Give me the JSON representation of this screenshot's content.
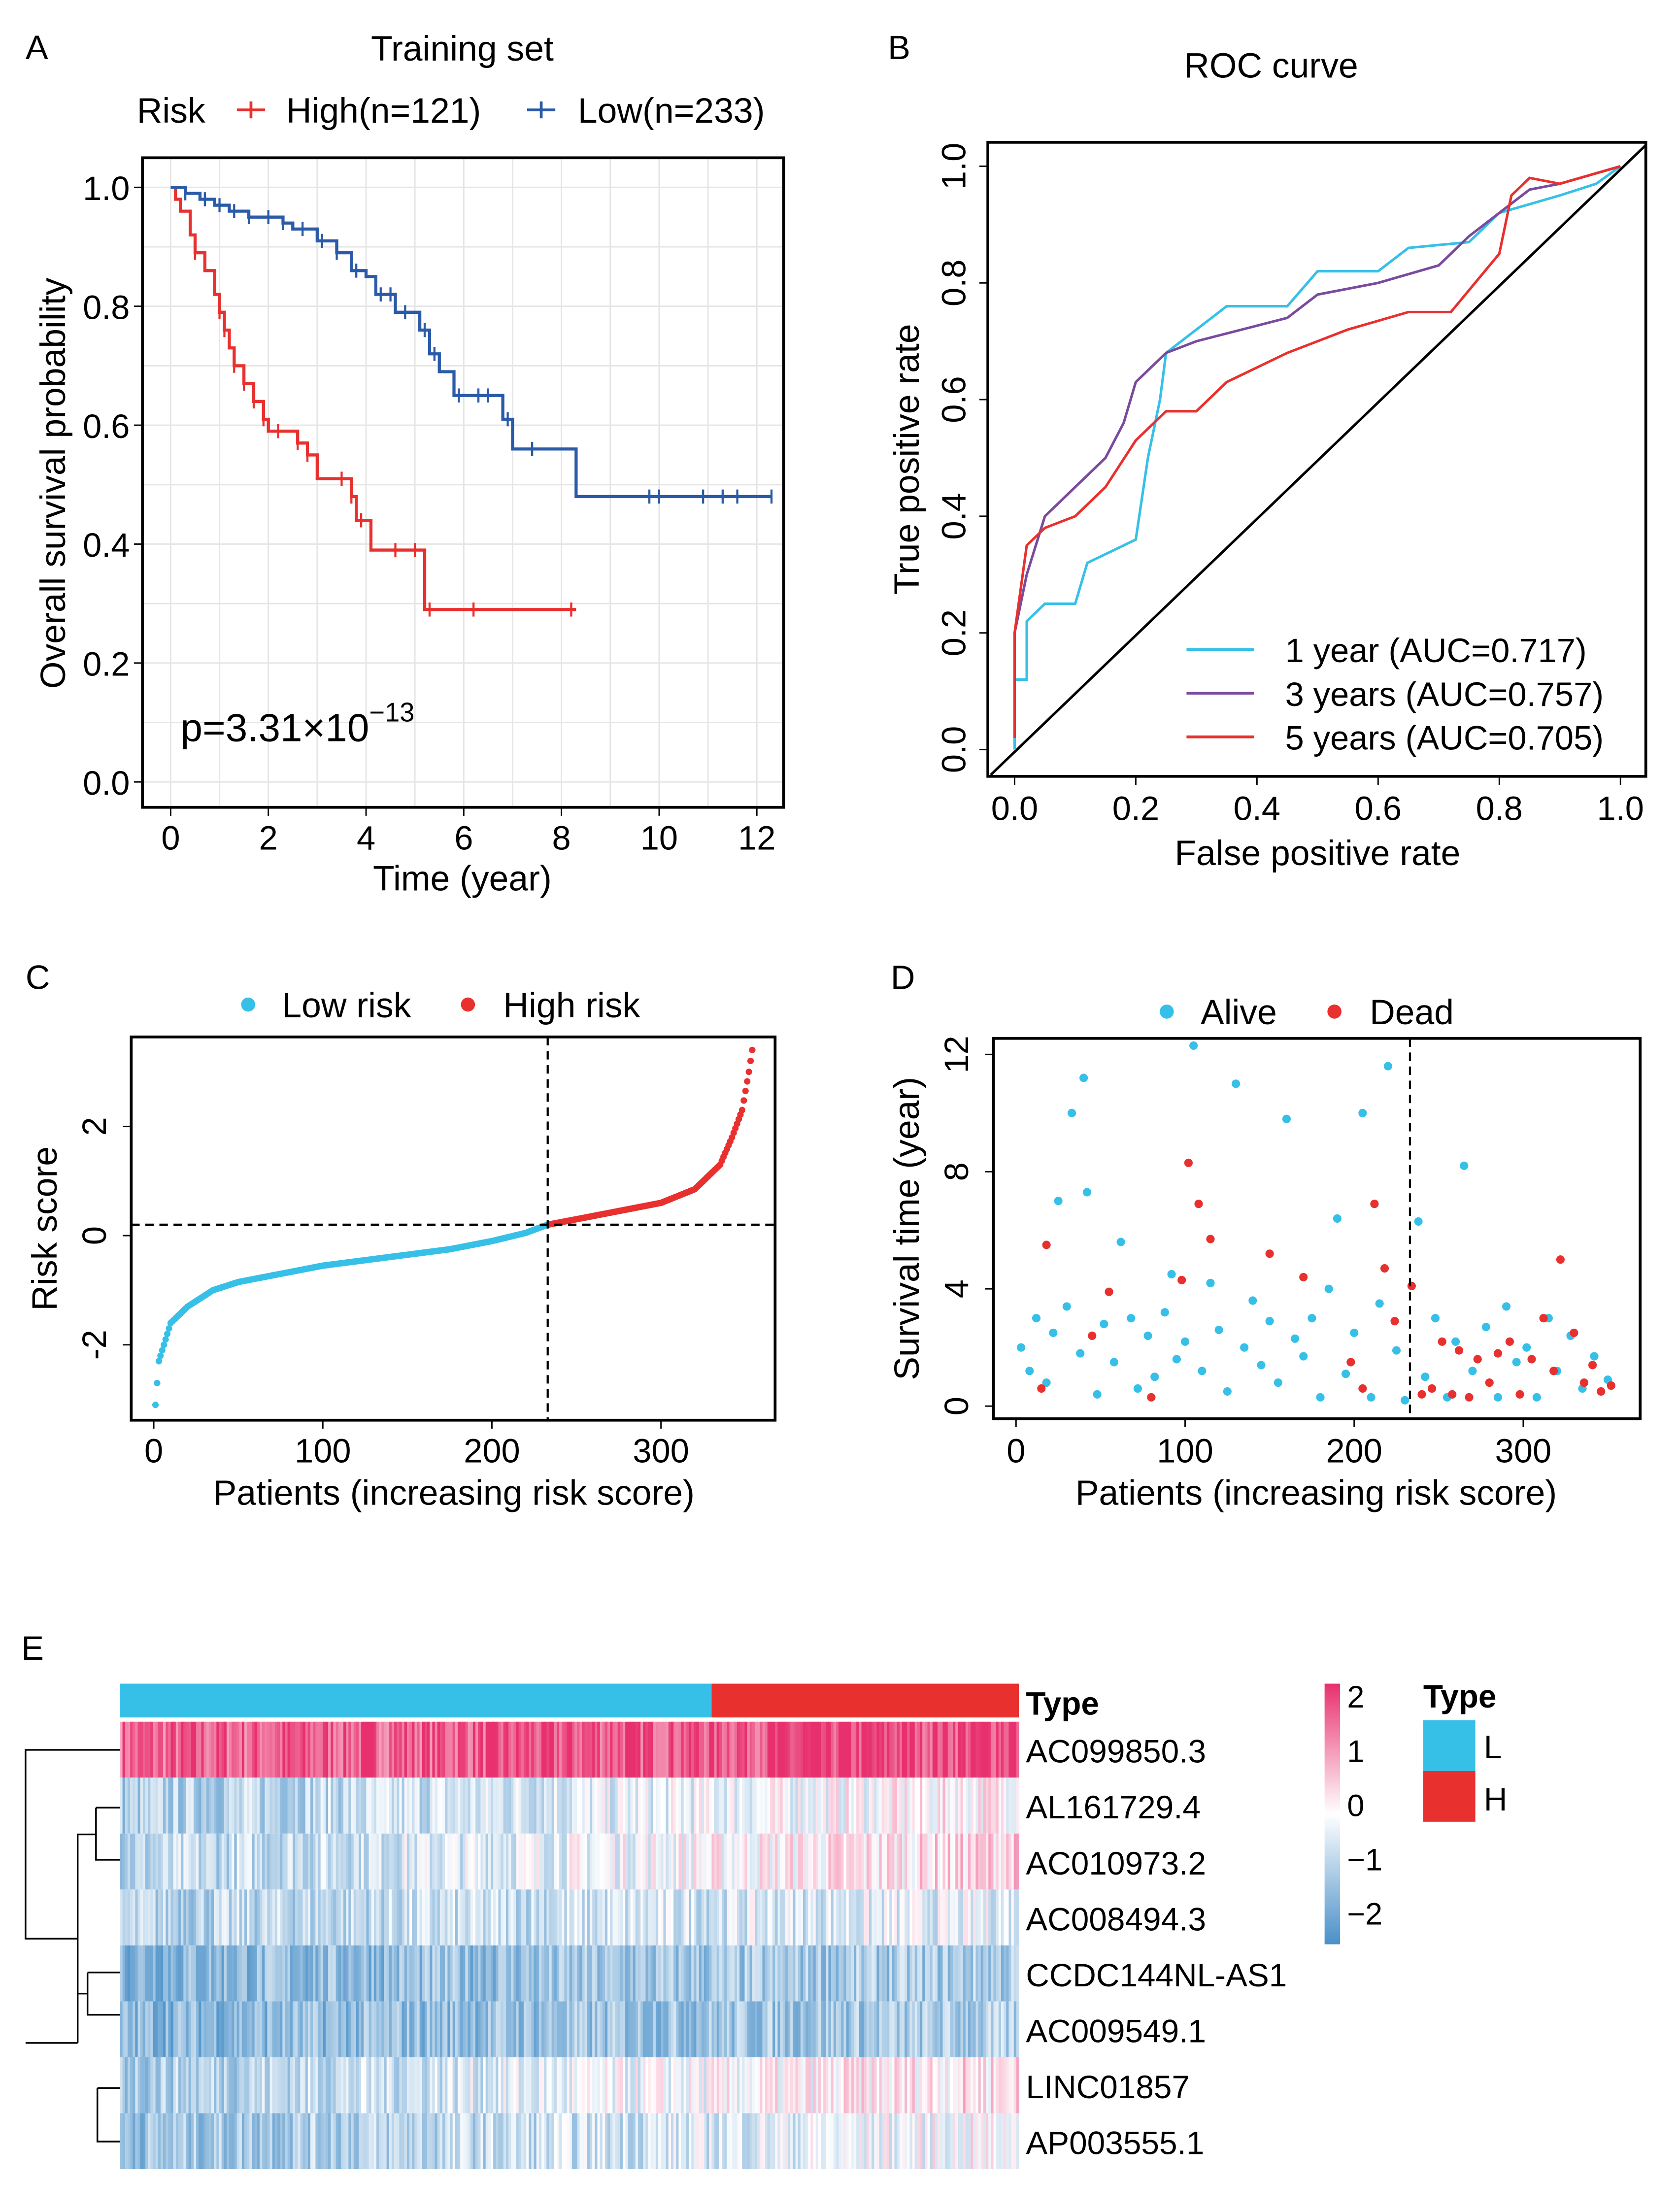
{
  "colors": {
    "high": "#e8302e",
    "low": "#2255a4",
    "km_high": "#e8302e",
    "km_low": "#2a5aa8",
    "alive": "#36c0e8",
    "dead": "#e8302e",
    "roc1": "#36c0e8",
    "roc3": "#7a4a9e",
    "roc5": "#e8302e",
    "heat_high": "#e8306e",
    "heat_low": "#4a90c8",
    "type_L": "#36c0e8",
    "type_H": "#e8302e"
  },
  "chart_data": [
    {
      "panel": "A",
      "type": "line",
      "title": "Training set",
      "legend_title": "Risk",
      "xlabel": "Time (year)",
      "ylabel": "Overall survival probability",
      "xlim": [
        0,
        12
      ],
      "ylim": [
        0,
        1
      ],
      "xticks": [
        "0",
        "2",
        "4",
        "6",
        "8",
        "10",
        "12"
      ],
      "yticks": [
        "0.0",
        "0.2",
        "0.4",
        "0.6",
        "0.8",
        "1.0"
      ],
      "grid": true,
      "legend_position": "top",
      "annotation": {
        "p_prefix": "p=3.31×10",
        "p_exp": "−13"
      },
      "series": [
        {
          "name": "High(n=121)",
          "steps": [
            [
              0,
              1
            ],
            [
              0.1,
              0.98
            ],
            [
              0.2,
              0.96
            ],
            [
              0.4,
              0.92
            ],
            [
              0.5,
              0.89
            ],
            [
              0.7,
              0.86
            ],
            [
              0.9,
              0.82
            ],
            [
              1.0,
              0.79
            ],
            [
              1.1,
              0.76
            ],
            [
              1.2,
              0.73
            ],
            [
              1.3,
              0.7
            ],
            [
              1.5,
              0.67
            ],
            [
              1.7,
              0.64
            ],
            [
              1.9,
              0.61
            ],
            [
              2.0,
              0.59
            ],
            [
              2.6,
              0.57
            ],
            [
              2.8,
              0.55
            ],
            [
              3.0,
              0.51
            ],
            [
              3.7,
              0.48
            ],
            [
              3.8,
              0.44
            ],
            [
              4.1,
              0.39
            ],
            [
              5.2,
              0.29
            ],
            [
              8.3,
              0.29
            ]
          ],
          "censor": [
            0.5,
            1.0,
            1.1,
            1.3,
            1.5,
            1.7,
            1.9,
            2.2,
            2.6,
            2.8,
            3.5,
            3.7,
            3.9,
            4.6,
            5.0,
            5.3,
            6.2,
            8.2
          ]
        },
        {
          "name": "Low(n=233)",
          "steps": [
            [
              0,
              1
            ],
            [
              0.3,
              0.99
            ],
            [
              0.6,
              0.98
            ],
            [
              0.9,
              0.97
            ],
            [
              1.2,
              0.96
            ],
            [
              1.6,
              0.95
            ],
            [
              2.3,
              0.94
            ],
            [
              2.5,
              0.93
            ],
            [
              3.0,
              0.91
            ],
            [
              3.4,
              0.89
            ],
            [
              3.7,
              0.86
            ],
            [
              4.0,
              0.85
            ],
            [
              4.2,
              0.82
            ],
            [
              4.6,
              0.79
            ],
            [
              5.1,
              0.76
            ],
            [
              5.3,
              0.72
            ],
            [
              5.5,
              0.69
            ],
            [
              5.8,
              0.65
            ],
            [
              6.8,
              0.61
            ],
            [
              7.0,
              0.56
            ],
            [
              8.3,
              0.48
            ],
            [
              12.3,
              0.48
            ]
          ],
          "censor": [
            0.3,
            0.7,
            1.0,
            1.3,
            1.6,
            2.0,
            2.3,
            2.7,
            3.1,
            3.4,
            3.8,
            4.3,
            4.5,
            4.8,
            5.2,
            5.4,
            5.9,
            6.3,
            6.5,
            6.9,
            7.4,
            9.8,
            10.0,
            10.9,
            11.3,
            11.6,
            12.3
          ]
        }
      ]
    },
    {
      "panel": "B",
      "type": "line",
      "title": "ROC curve",
      "xlabel": "False positive rate",
      "ylabel": "True positive rate",
      "xlim": [
        0,
        1
      ],
      "ylim": [
        0,
        1
      ],
      "xticks": [
        "0.0",
        "0.2",
        "0.4",
        "0.6",
        "0.8",
        "1.0"
      ],
      "yticks": [
        "0.0",
        "0.2",
        "0.4",
        "0.6",
        "0.8",
        "1.0"
      ],
      "legend_position": "bottom-right",
      "series": [
        {
          "name": "1 year (AUC=0.717)",
          "points": [
            [
              0,
              0
            ],
            [
              0,
              0.12
            ],
            [
              0.02,
              0.12
            ],
            [
              0.02,
              0.22
            ],
            [
              0.05,
              0.25
            ],
            [
              0.1,
              0.25
            ],
            [
              0.12,
              0.32
            ],
            [
              0.2,
              0.36
            ],
            [
              0.22,
              0.5
            ],
            [
              0.24,
              0.6
            ],
            [
              0.25,
              0.68
            ],
            [
              0.3,
              0.72
            ],
            [
              0.35,
              0.76
            ],
            [
              0.45,
              0.76
            ],
            [
              0.5,
              0.82
            ],
            [
              0.6,
              0.82
            ],
            [
              0.65,
              0.86
            ],
            [
              0.75,
              0.87
            ],
            [
              0.8,
              0.92
            ],
            [
              0.9,
              0.95
            ],
            [
              0.96,
              0.97
            ],
            [
              1,
              1
            ]
          ]
        },
        {
          "name": "3 years (AUC=0.757)",
          "points": [
            [
              0,
              0.2
            ],
            [
              0.02,
              0.3
            ],
            [
              0.05,
              0.4
            ],
            [
              0.1,
              0.45
            ],
            [
              0.15,
              0.5
            ],
            [
              0.18,
              0.56
            ],
            [
              0.2,
              0.63
            ],
            [
              0.25,
              0.68
            ],
            [
              0.3,
              0.7
            ],
            [
              0.45,
              0.74
            ],
            [
              0.5,
              0.78
            ],
            [
              0.6,
              0.8
            ],
            [
              0.7,
              0.83
            ],
            [
              0.75,
              0.88
            ],
            [
              0.8,
              0.92
            ],
            [
              0.85,
              0.96
            ],
            [
              0.9,
              0.97
            ],
            [
              1,
              1
            ]
          ]
        },
        {
          "name": "5 years (AUC=0.705)",
          "points": [
            [
              0,
              0.02
            ],
            [
              0,
              0.2
            ],
            [
              0.02,
              0.35
            ],
            [
              0.05,
              0.38
            ],
            [
              0.1,
              0.4
            ],
            [
              0.15,
              0.45
            ],
            [
              0.2,
              0.53
            ],
            [
              0.25,
              0.58
            ],
            [
              0.3,
              0.58
            ],
            [
              0.35,
              0.63
            ],
            [
              0.45,
              0.68
            ],
            [
              0.55,
              0.72
            ],
            [
              0.65,
              0.75
            ],
            [
              0.72,
              0.75
            ],
            [
              0.8,
              0.85
            ],
            [
              0.82,
              0.95
            ],
            [
              0.85,
              0.98
            ],
            [
              0.9,
              0.97
            ],
            [
              1,
              1
            ]
          ]
        }
      ]
    },
    {
      "panel": "C",
      "type": "scatter",
      "xlabel": "Patients (increasing risk score)",
      "ylabel": "Risk score",
      "xlim": [
        0,
        354
      ],
      "ylim": [
        -3.3,
        3.5
      ],
      "xticks": [
        "0",
        "100",
        "200",
        "300"
      ],
      "yticks": [
        "-2",
        "0",
        "2"
      ],
      "cutoff": {
        "patient": 233,
        "risk_score": 0.2
      },
      "legend": [
        "Low risk",
        "High risk"
      ],
      "legend_position": "top",
      "curve": [
        [
          1,
          -3.1
        ],
        [
          3,
          -2.3
        ],
        [
          6,
          -2.0
        ],
        [
          10,
          -1.6
        ],
        [
          20,
          -1.3
        ],
        [
          35,
          -1.0
        ],
        [
          50,
          -0.85
        ],
        [
          75,
          -0.7
        ],
        [
          100,
          -0.55
        ],
        [
          125,
          -0.45
        ],
        [
          150,
          -0.35
        ],
        [
          175,
          -0.25
        ],
        [
          200,
          -0.1
        ],
        [
          220,
          0.05
        ],
        [
          233,
          0.2
        ],
        [
          250,
          0.3
        ],
        [
          275,
          0.45
        ],
        [
          300,
          0.6
        ],
        [
          320,
          0.85
        ],
        [
          335,
          1.3
        ],
        [
          342,
          1.8
        ],
        [
          348,
          2.3
        ],
        [
          352,
          3.0
        ],
        [
          354,
          3.4
        ]
      ]
    },
    {
      "panel": "D",
      "type": "scatter",
      "xlabel": "Patients (increasing risk score)",
      "ylabel": "Survival time (year)",
      "xlim": [
        0,
        354
      ],
      "ylim": [
        0,
        12
      ],
      "xticks": [
        "0",
        "100",
        "200",
        "300"
      ],
      "yticks": [
        "0",
        "4",
        "8",
        "12"
      ],
      "cutoff_patient": 233,
      "legend": [
        "Alive",
        "Dead"
      ],
      "legend_position": "top",
      "alive": [
        [
          3,
          2.0
        ],
        [
          8,
          1.2
        ],
        [
          12,
          3.0
        ],
        [
          18,
          0.8
        ],
        [
          22,
          2.5
        ],
        [
          25,
          7.0
        ],
        [
          30,
          3.4
        ],
        [
          33,
          10.0
        ],
        [
          38,
          1.8
        ],
        [
          40,
          11.2
        ],
        [
          42,
          7.3
        ],
        [
          48,
          0.4
        ],
        [
          52,
          2.8
        ],
        [
          58,
          1.5
        ],
        [
          62,
          5.6
        ],
        [
          68,
          3.0
        ],
        [
          72,
          0.6
        ],
        [
          78,
          2.4
        ],
        [
          82,
          1.0
        ],
        [
          88,
          3.2
        ],
        [
          92,
          4.5
        ],
        [
          95,
          1.6
        ],
        [
          100,
          2.2
        ],
        [
          105,
          12.3
        ],
        [
          110,
          1.2
        ],
        [
          115,
          4.2
        ],
        [
          120,
          2.6
        ],
        [
          125,
          0.5
        ],
        [
          130,
          11.0
        ],
        [
          135,
          2.0
        ],
        [
          140,
          3.6
        ],
        [
          145,
          1.4
        ],
        [
          150,
          2.9
        ],
        [
          155,
          0.8
        ],
        [
          160,
          9.8
        ],
        [
          165,
          2.3
        ],
        [
          170,
          1.7
        ],
        [
          175,
          3.0
        ],
        [
          180,
          0.3
        ],
        [
          185,
          4.0
        ],
        [
          190,
          6.4
        ],
        [
          195,
          1.1
        ],
        [
          200,
          2.5
        ],
        [
          205,
          10.0
        ],
        [
          210,
          0.3
        ],
        [
          215,
          3.5
        ],
        [
          220,
          11.6
        ],
        [
          225,
          1.9
        ],
        [
          230,
          0.2
        ],
        [
          238,
          6.3
        ],
        [
          242,
          1.0
        ],
        [
          248,
          3.0
        ],
        [
          255,
          0.3
        ],
        [
          260,
          2.2
        ],
        [
          265,
          8.2
        ],
        [
          270,
          1.2
        ],
        [
          278,
          2.7
        ],
        [
          285,
          0.3
        ],
        [
          290,
          3.4
        ],
        [
          296,
          1.5
        ],
        [
          302,
          2.0
        ],
        [
          308,
          0.3
        ],
        [
          315,
          3.0
        ],
        [
          320,
          1.2
        ],
        [
          328,
          2.4
        ],
        [
          335,
          0.6
        ],
        [
          342,
          1.7
        ],
        [
          350,
          0.9
        ]
      ],
      "dead": [
        [
          15,
          0.6
        ],
        [
          18,
          5.5
        ],
        [
          45,
          2.4
        ],
        [
          55,
          3.9
        ],
        [
          80,
          0.3
        ],
        [
          98,
          4.3
        ],
        [
          102,
          8.3
        ],
        [
          108,
          6.9
        ],
        [
          115,
          5.7
        ],
        [
          150,
          5.2
        ],
        [
          170,
          4.4
        ],
        [
          198,
          1.5
        ],
        [
          205,
          0.6
        ],
        [
          212,
          6.9
        ],
        [
          218,
          4.7
        ],
        [
          224,
          2.9
        ],
        [
          234,
          4.1
        ],
        [
          240,
          0.4
        ],
        [
          246,
          0.6
        ],
        [
          252,
          2.2
        ],
        [
          258,
          0.4
        ],
        [
          262,
          1.9
        ],
        [
          268,
          0.3
        ],
        [
          273,
          1.6
        ],
        [
          280,
          0.8
        ],
        [
          285,
          1.8
        ],
        [
          292,
          2.2
        ],
        [
          298,
          0.4
        ],
        [
          305,
          1.6
        ],
        [
          312,
          3.0
        ],
        [
          318,
          1.2
        ],
        [
          322,
          5.0
        ],
        [
          330,
          2.5
        ],
        [
          336,
          0.8
        ],
        [
          341,
          1.4
        ],
        [
          346,
          0.5
        ],
        [
          352,
          0.7
        ]
      ]
    },
    {
      "panel": "E",
      "type": "heatmap",
      "annotation_label": "Type",
      "rows": [
        "AC099850.3",
        "AL161729.4",
        "AC010973.2",
        "AC008494.3",
        "CCDC144NL-AS1",
        "AC009549.1",
        "LINC01857",
        "AP003555.1"
      ],
      "row_level": [
        1.8,
        -0.4,
        -0.2,
        -0.6,
        -1.2,
        -1.2,
        -0.3,
        -0.6
      ],
      "row_trend": [
        0.2,
        0.6,
        0.7,
        0.3,
        0.2,
        0.2,
        0.7,
        0.6
      ],
      "n_low": 233,
      "n_high": 121,
      "colorbar_ticks": [
        "2",
        "1",
        "0",
        "−1",
        "−2"
      ],
      "legend_title": "Type",
      "legend_items": [
        "L",
        "H"
      ]
    }
  ],
  "panel_labels": [
    "A",
    "B",
    "C",
    "D",
    "E"
  ]
}
